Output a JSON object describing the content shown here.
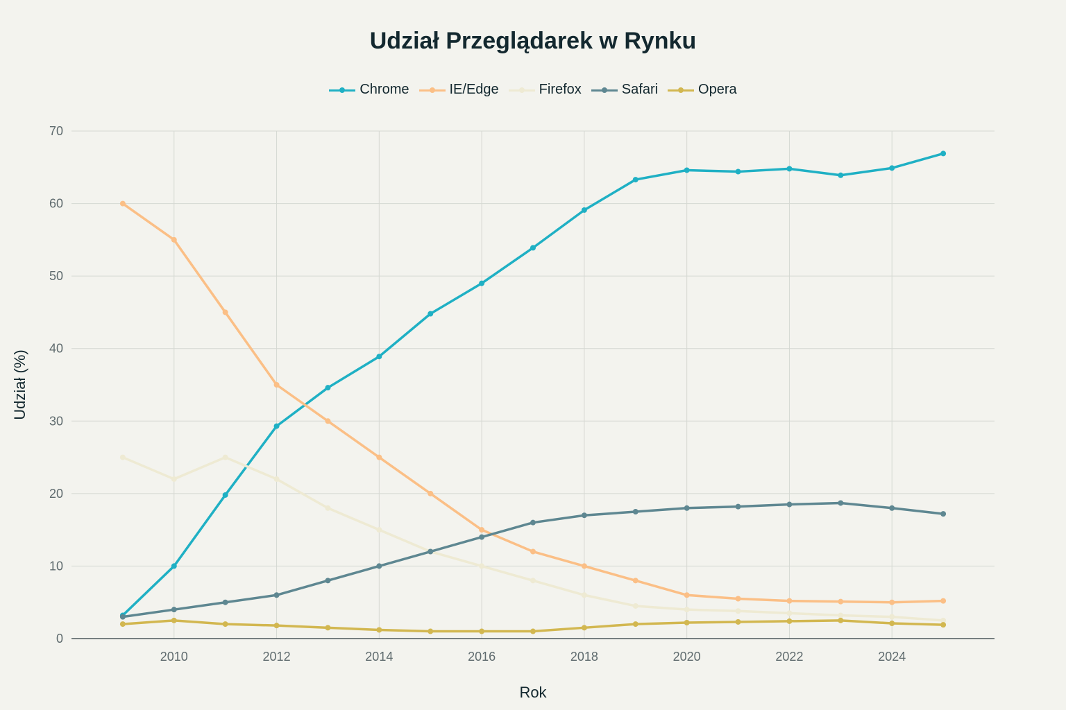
{
  "chart_data": {
    "type": "line",
    "title": "Udział Przeglądarek w Rynku",
    "xlabel": "Rok",
    "ylabel": "Udział (%)",
    "xlim": [
      2008,
      2026
    ],
    "ylim": [
      0,
      70
    ],
    "xticks": [
      2010,
      2012,
      2014,
      2016,
      2018,
      2020,
      2022,
      2024
    ],
    "yticks": [
      0,
      10,
      20,
      30,
      40,
      50,
      60,
      70
    ],
    "grid": true,
    "legend_position": "top-center",
    "x": [
      2009,
      2010,
      2011,
      2012,
      2013,
      2014,
      2015,
      2016,
      2017,
      2018,
      2019,
      2020,
      2021,
      2022,
      2023,
      2024,
      2025
    ],
    "series": [
      {
        "name": "Chrome",
        "color": "#1fb0c4",
        "values": [
          3.2,
          10,
          19.8,
          29.3,
          34.6,
          38.9,
          44.8,
          49,
          53.9,
          59.1,
          63.3,
          64.6,
          64.4,
          64.8,
          63.9,
          64.9,
          66.9
        ]
      },
      {
        "name": "IE/Edge",
        "color": "#fbbf86",
        "values": [
          60,
          55,
          45,
          35,
          30,
          25,
          20,
          15,
          12,
          10,
          8,
          6,
          5.5,
          5.2,
          5.1,
          5,
          5.2
        ]
      },
      {
        "name": "Firefox",
        "color": "#eeead3",
        "values": [
          25,
          22,
          25,
          22,
          18,
          15,
          12,
          10,
          8,
          6,
          4.5,
          4,
          3.8,
          3.5,
          3.2,
          3,
          2.5
        ]
      },
      {
        "name": "Safari",
        "color": "#5e8791",
        "values": [
          3,
          4,
          5,
          6,
          8,
          10,
          12,
          14,
          16,
          17,
          17.5,
          18,
          18.2,
          18.5,
          18.7,
          18,
          17.2
        ]
      },
      {
        "name": "Opera",
        "color": "#d2b750",
        "values": [
          2,
          2.5,
          2,
          1.8,
          1.5,
          1.2,
          1,
          1,
          1,
          1.5,
          2,
          2.2,
          2.3,
          2.4,
          2.5,
          2.1,
          1.9
        ]
      }
    ]
  }
}
